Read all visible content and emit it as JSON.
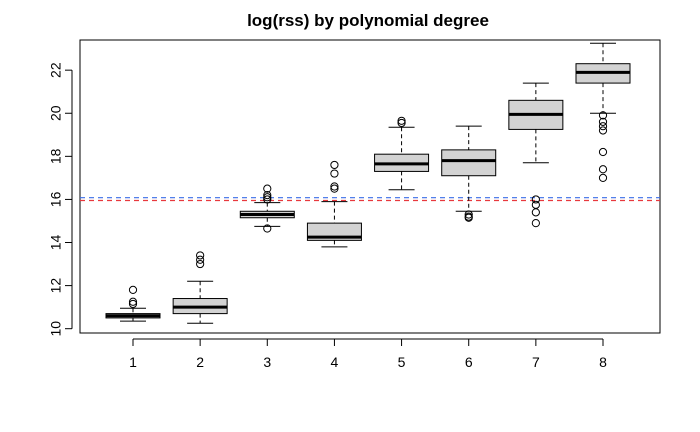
{
  "chart_data": {
    "type": "boxplot",
    "title": "log(rss) by polynomial degree",
    "xlabel": "",
    "ylabel": "",
    "categories": [
      "1",
      "2",
      "3",
      "4",
      "5",
      "6",
      "7",
      "8"
    ],
    "y_ticks": [
      "10",
      "12",
      "14",
      "16",
      "18",
      "20",
      "22"
    ],
    "ylim": [
      9.8,
      23.4
    ],
    "grid": false,
    "legend": "none",
    "boxes": [
      {
        "category": "1",
        "whisker_low": 10.35,
        "q1": 10.5,
        "median": 10.6,
        "q3": 10.7,
        "whisker_high": 10.95,
        "outliers": [
          11.15,
          11.25,
          11.8
        ]
      },
      {
        "category": "2",
        "whisker_low": 10.25,
        "q1": 10.7,
        "median": 11.0,
        "q3": 11.4,
        "whisker_high": 12.2,
        "outliers": [
          13.0,
          13.2,
          13.4
        ]
      },
      {
        "category": "3",
        "whisker_low": 14.75,
        "q1": 15.15,
        "median": 15.3,
        "q3": 15.45,
        "whisker_high": 15.85,
        "outliers": [
          14.65,
          16.0,
          16.1,
          16.2,
          16.5
        ]
      },
      {
        "category": "4",
        "whisker_low": 13.8,
        "q1": 14.1,
        "median": 14.25,
        "q3": 14.9,
        "whisker_high": 15.9,
        "outliers": [
          16.5,
          16.6,
          17.2,
          17.6
        ]
      },
      {
        "category": "5",
        "whisker_low": 16.45,
        "q1": 17.3,
        "median": 17.65,
        "q3": 18.1,
        "whisker_high": 19.35,
        "outliers": [
          19.55,
          19.65
        ]
      },
      {
        "category": "6",
        "whisker_low": 15.45,
        "q1": 17.1,
        "median": 17.8,
        "q3": 18.3,
        "whisker_high": 19.4,
        "outliers": [
          15.15,
          15.2,
          15.3
        ]
      },
      {
        "category": "7",
        "whisker_low": 17.7,
        "q1": 19.25,
        "median": 19.95,
        "q3": 20.6,
        "whisker_high": 21.4,
        "outliers": [
          14.9,
          15.4,
          15.75,
          16.0
        ]
      },
      {
        "category": "8",
        "whisker_low": 20.0,
        "q1": 21.4,
        "median": 21.9,
        "q3": 22.3,
        "whisker_high": 23.25,
        "outliers": [
          17.0,
          17.4,
          18.2,
          19.2,
          19.4,
          19.6,
          19.9
        ]
      }
    ],
    "reference_lines": [
      {
        "y": 15.95,
        "color": "#e8383d",
        "style": "dashed"
      },
      {
        "y": 16.08,
        "color": "#3b6ee8",
        "style": "dashed"
      }
    ],
    "box_fill": "#d3d3d3",
    "median_color": "#000000"
  }
}
